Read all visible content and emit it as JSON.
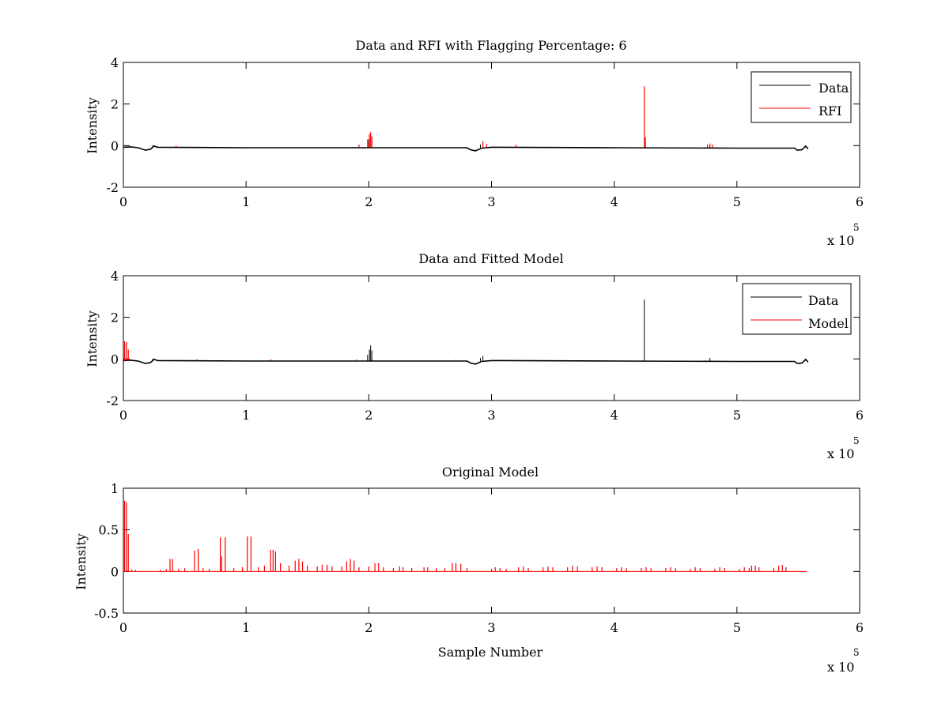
{
  "chart_data": [
    {
      "type": "line",
      "title": "Data and RFI with Flagging Percentage: 6",
      "xlabel": "",
      "ylabel": "Intensity",
      "xlim": [
        0,
        600000
      ],
      "ylim": [
        -2,
        4
      ],
      "xticks": [
        0,
        1,
        2,
        3,
        4,
        5,
        6
      ],
      "yticks": [
        -2,
        0,
        2,
        4
      ],
      "x_exponent_label": "x 10",
      "x_exponent": "5",
      "legend": {
        "position": "top-right",
        "entries": [
          "Data",
          "RFI"
        ]
      },
      "series": [
        {
          "name": "Data",
          "color": "#000000",
          "kind": "baseline",
          "points": [
            [
              0,
              -0.08
            ],
            [
              6000,
              -0.06
            ],
            [
              12000,
              -0.1
            ],
            [
              18000,
              -0.22
            ],
            [
              22000,
              -0.18
            ],
            [
              25000,
              -0.02
            ],
            [
              28000,
              -0.08
            ],
            [
              100000,
              -0.1
            ],
            [
              200000,
              -0.1
            ],
            [
              280000,
              -0.1
            ],
            [
              283000,
              -0.2
            ],
            [
              287000,
              -0.25
            ],
            [
              292000,
              -0.12
            ],
            [
              300000,
              -0.08
            ],
            [
              400000,
              -0.1
            ],
            [
              500000,
              -0.12
            ],
            [
              547000,
              -0.12
            ],
            [
              549000,
              -0.22
            ],
            [
              553000,
              -0.2
            ],
            [
              556000,
              -0.02
            ],
            [
              558000,
              -0.15
            ]
          ],
          "spikes": [
            [
              24000,
              0.02
            ],
            [
              200000,
              0.3
            ],
            [
              291000,
              0.05
            ],
            [
              478000,
              0.02
            ]
          ]
        },
        {
          "name": "RFI",
          "color": "#ff0000",
          "kind": "spikes",
          "spikes": [
            [
              43000,
              0.0
            ],
            [
              192000,
              0.05
            ],
            [
              199000,
              0.3
            ],
            [
              200500,
              0.55
            ],
            [
              201500,
              0.65
            ],
            [
              202500,
              0.45
            ],
            [
              293000,
              0.2
            ],
            [
              296000,
              0.08
            ],
            [
              320000,
              0.05
            ],
            [
              424500,
              2.85
            ],
            [
              425500,
              0.4
            ],
            [
              476000,
              0.05
            ],
            [
              478000,
              0.1
            ],
            [
              480000,
              0.05
            ]
          ]
        }
      ]
    },
    {
      "type": "line",
      "title": "Data and Fitted Model",
      "xlabel": "",
      "ylabel": "Intensity",
      "xlim": [
        0,
        600000
      ],
      "ylim": [
        -2,
        4
      ],
      "xticks": [
        0,
        1,
        2,
        3,
        4,
        5,
        6
      ],
      "yticks": [
        -2,
        0,
        2,
        4
      ],
      "x_exponent_label": "x 10",
      "x_exponent": "5",
      "legend": {
        "position": "top-right",
        "entries": [
          "Data",
          "Model"
        ]
      },
      "series": [
        {
          "name": "Data",
          "color": "#000000",
          "kind": "baseline",
          "points": [
            [
              0,
              -0.08
            ],
            [
              6000,
              -0.06
            ],
            [
              12000,
              -0.1
            ],
            [
              18000,
              -0.22
            ],
            [
              22000,
              -0.18
            ],
            [
              25000,
              -0.02
            ],
            [
              28000,
              -0.08
            ],
            [
              100000,
              -0.1
            ],
            [
              200000,
              -0.1
            ],
            [
              280000,
              -0.1
            ],
            [
              283000,
              -0.2
            ],
            [
              287000,
              -0.25
            ],
            [
              292000,
              -0.12
            ],
            [
              300000,
              -0.08
            ],
            [
              400000,
              -0.1
            ],
            [
              500000,
              -0.12
            ],
            [
              547000,
              -0.12
            ],
            [
              549000,
              -0.22
            ],
            [
              553000,
              -0.2
            ],
            [
              556000,
              -0.02
            ],
            [
              558000,
              -0.15
            ]
          ],
          "spikes": [
            [
              24000,
              0.02
            ],
            [
              199000,
              0.2
            ],
            [
              200500,
              0.45
            ],
            [
              201500,
              0.65
            ],
            [
              202500,
              0.4
            ],
            [
              291000,
              0.05
            ],
            [
              293000,
              0.15
            ],
            [
              424500,
              2.85
            ],
            [
              478000,
              0.05
            ]
          ]
        },
        {
          "name": "Model",
          "color": "#ff0000",
          "kind": "spikes",
          "spikes": [
            [
              1000,
              0.85
            ],
            [
              2500,
              0.8
            ],
            [
              4000,
              0.45
            ],
            [
              60000,
              -0.02
            ],
            [
              120000,
              -0.02
            ],
            [
              190000,
              -0.03
            ],
            [
              270000,
              -0.05
            ],
            [
              330000,
              -0.06
            ],
            [
              400000,
              -0.06
            ],
            [
              470000,
              -0.07
            ],
            [
              510000,
              -0.07
            ]
          ]
        }
      ]
    },
    {
      "type": "line",
      "title": "Original Model",
      "xlabel": "Sample Number",
      "ylabel": "Intensity",
      "xlim": [
        0,
        600000
      ],
      "ylim": [
        -0.5,
        1
      ],
      "xticks": [
        0,
        1,
        2,
        3,
        4,
        5,
        6
      ],
      "yticks": [
        -0.5,
        0,
        0.5,
        1
      ],
      "x_exponent_label": "x 10",
      "x_exponent": "5",
      "legend": null,
      "series": [
        {
          "name": "",
          "color": "#ff0000",
          "kind": "spikes",
          "baseline_range": [
            0,
            557000
          ],
          "spikes": [
            [
              1000,
              0.85
            ],
            [
              2500,
              0.83
            ],
            [
              4000,
              0.45
            ],
            [
              7000,
              0.02
            ],
            [
              10000,
              0.02
            ],
            [
              30000,
              0.02
            ],
            [
              35000,
              0.03
            ],
            [
              38000,
              0.15
            ],
            [
              40000,
              0.15
            ],
            [
              45000,
              0.03
            ],
            [
              50000,
              0.04
            ],
            [
              58000,
              0.25
            ],
            [
              61000,
              0.27
            ],
            [
              65000,
              0.04
            ],
            [
              70000,
              0.03
            ],
            [
              79000,
              0.41
            ],
            [
              80000,
              0.18
            ],
            [
              83000,
              0.41
            ],
            [
              90000,
              0.04
            ],
            [
              97000,
              0.05
            ],
            [
              101000,
              0.42
            ],
            [
              104000,
              0.42
            ],
            [
              110000,
              0.05
            ],
            [
              115000,
              0.07
            ],
            [
              120000,
              0.26
            ],
            [
              122000,
              0.26
            ],
            [
              124000,
              0.24
            ],
            [
              128000,
              0.1
            ],
            [
              135000,
              0.07
            ],
            [
              140000,
              0.13
            ],
            [
              143000,
              0.15
            ],
            [
              146000,
              0.12
            ],
            [
              150000,
              0.07
            ],
            [
              158000,
              0.06
            ],
            [
              162000,
              0.08
            ],
            [
              166000,
              0.08
            ],
            [
              170000,
              0.06
            ],
            [
              178000,
              0.06
            ],
            [
              182000,
              0.12
            ],
            [
              185000,
              0.15
            ],
            [
              188000,
              0.13
            ],
            [
              192000,
              0.05
            ],
            [
              200000,
              0.06
            ],
            [
              205000,
              0.1
            ],
            [
              208000,
              0.1
            ],
            [
              212000,
              0.05
            ],
            [
              220000,
              0.04
            ],
            [
              225000,
              0.06
            ],
            [
              228000,
              0.05
            ],
            [
              235000,
              0.04
            ],
            [
              245000,
              0.05
            ],
            [
              248000,
              0.05
            ],
            [
              255000,
              0.04
            ],
            [
              262000,
              0.04
            ],
            [
              268000,
              0.1
            ],
            [
              271000,
              0.1
            ],
            [
              275000,
              0.09
            ],
            [
              280000,
              0.04
            ],
            [
              300000,
              0.03
            ],
            [
              303000,
              0.05
            ],
            [
              307000,
              0.04
            ],
            [
              312000,
              0.03
            ],
            [
              322000,
              0.05
            ],
            [
              326000,
              0.06
            ],
            [
              330000,
              0.04
            ],
            [
              342000,
              0.05
            ],
            [
              346000,
              0.06
            ],
            [
              350000,
              0.05
            ],
            [
              362000,
              0.05
            ],
            [
              366000,
              0.07
            ],
            [
              370000,
              0.06
            ],
            [
              382000,
              0.05
            ],
            [
              386000,
              0.06
            ],
            [
              390000,
              0.05
            ],
            [
              402000,
              0.04
            ],
            [
              406000,
              0.05
            ],
            [
              410000,
              0.04
            ],
            [
              422000,
              0.04
            ],
            [
              426000,
              0.05
            ],
            [
              430000,
              0.04
            ],
            [
              442000,
              0.04
            ],
            [
              446000,
              0.05
            ],
            [
              450000,
              0.04
            ],
            [
              462000,
              0.03
            ],
            [
              466000,
              0.05
            ],
            [
              470000,
              0.04
            ],
            [
              482000,
              0.03
            ],
            [
              486000,
              0.05
            ],
            [
              490000,
              0.04
            ],
            [
              502000,
              0.03
            ],
            [
              506000,
              0.05
            ],
            [
              510000,
              0.04
            ],
            [
              512000,
              0.07
            ],
            [
              515000,
              0.07
            ],
            [
              518000,
              0.05
            ],
            [
              530000,
              0.04
            ],
            [
              534000,
              0.07
            ],
            [
              537000,
              0.08
            ],
            [
              540000,
              0.05
            ]
          ]
        }
      ]
    }
  ]
}
